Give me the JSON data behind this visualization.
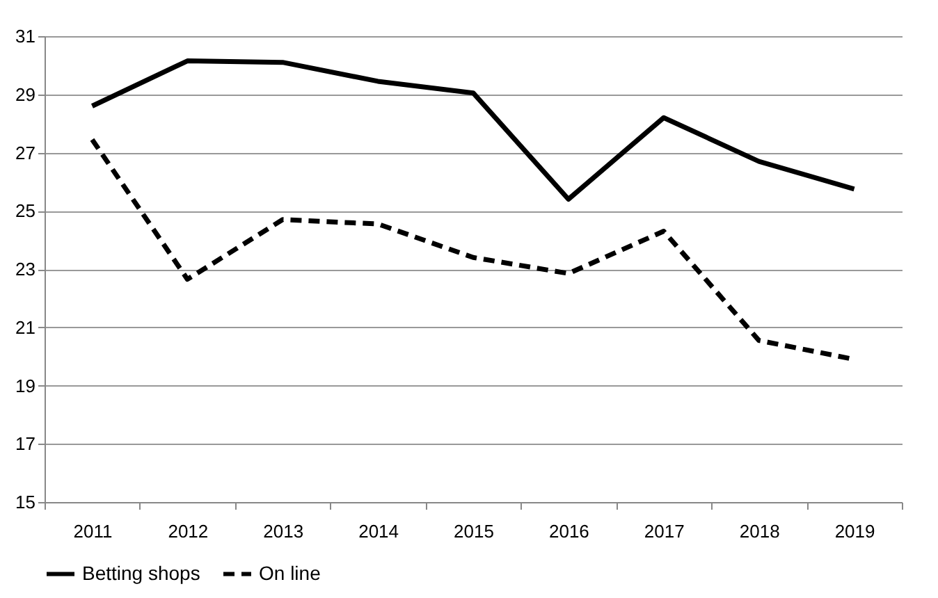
{
  "chart_data": {
    "type": "line",
    "categories": [
      "2011",
      "2012",
      "2013",
      "2014",
      "2015",
      "2016",
      "2017",
      "2018",
      "2019"
    ],
    "series": [
      {
        "name": "Betting shops",
        "color": "#000000",
        "line_style": "solid",
        "values": [
          28.6,
          30.15,
          30.1,
          29.45,
          29.05,
          25.4,
          28.2,
          26.7,
          25.75
        ]
      },
      {
        "name": "On line",
        "color": "#000000",
        "line_style": "dashed",
        "values": [
          27.45,
          22.65,
          24.7,
          24.55,
          23.4,
          22.85,
          24.3,
          20.55,
          19.9
        ]
      }
    ],
    "ylim": [
      15,
      31
    ],
    "yticks": [
      15,
      17,
      19,
      21,
      23,
      25,
      27,
      29,
      31
    ],
    "grid": "y",
    "legend": "bottom",
    "marker": "none"
  }
}
